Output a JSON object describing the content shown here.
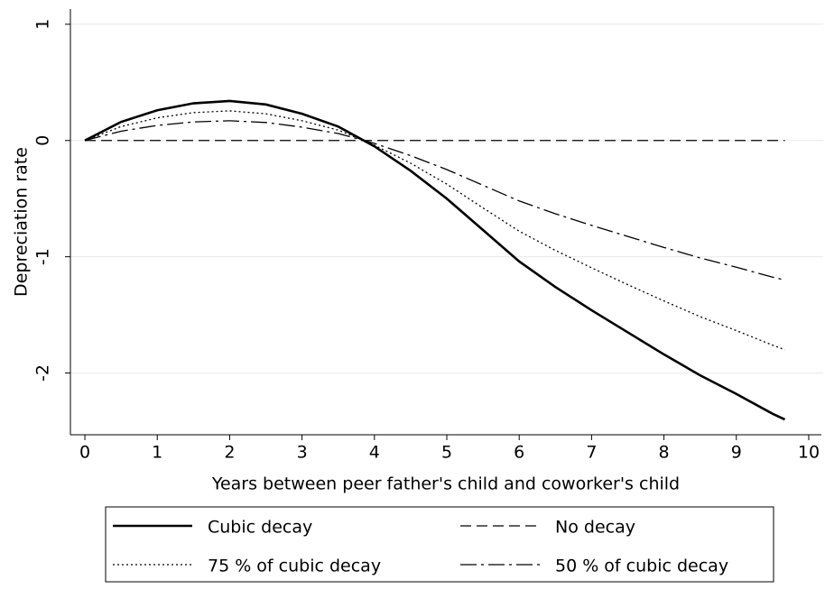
{
  "chart_data": {
    "type": "line",
    "xlabel": "Years between peer father's child and coworker's child",
    "ylabel": "Depreciation rate",
    "x": [
      0,
      0.5,
      1,
      1.5,
      2,
      2.5,
      3,
      3.5,
      4,
      4.5,
      5,
      5.5,
      6,
      6.5,
      7,
      7.5,
      8,
      8.5,
      9,
      9.5,
      9.67
    ],
    "series": [
      {
        "name": "Cubic decay",
        "color": "#000000",
        "style": "solid",
        "values": [
          0,
          0.16,
          0.26,
          0.32,
          0.34,
          0.31,
          0.23,
          0.12,
          -0.05,
          -0.26,
          -0.5,
          -0.77,
          -1.04,
          -1.26,
          -1.46,
          -1.65,
          -1.84,
          -2.02,
          -2.18,
          -2.35,
          -2.4
        ]
      },
      {
        "name": "No decay",
        "color": "#000000",
        "style": "dashed",
        "values": [
          0,
          0,
          0,
          0,
          0,
          0,
          0,
          0,
          0,
          0,
          0,
          0,
          0,
          0,
          0,
          0,
          0,
          0,
          0,
          0,
          0
        ]
      },
      {
        "name": "75 % of cubic decay",
        "color": "#000000",
        "style": "dotted",
        "values": [
          0,
          0.12,
          0.195,
          0.24,
          0.255,
          0.23,
          0.17,
          0.09,
          -0.04,
          -0.195,
          -0.375,
          -0.58,
          -0.78,
          -0.945,
          -1.095,
          -1.24,
          -1.38,
          -1.515,
          -1.635,
          -1.76,
          -1.8
        ]
      },
      {
        "name": "50 % of cubic decay",
        "color": "#000000",
        "style": "dashdot",
        "values": [
          0,
          0.08,
          0.13,
          0.16,
          0.17,
          0.155,
          0.115,
          0.06,
          -0.025,
          -0.13,
          -0.25,
          -0.385,
          -0.52,
          -0.63,
          -0.73,
          -0.825,
          -0.92,
          -1.01,
          -1.09,
          -1.175,
          -1.2
        ]
      }
    ],
    "xlim": [
      -0.2,
      10.2
    ],
    "xticks": [
      0,
      1,
      2,
      3,
      4,
      5,
      6,
      7,
      8,
      9,
      10
    ],
    "ylim": [
      -2.5,
      1.1
    ],
    "yticks": [
      -2,
      -1,
      0,
      1
    ],
    "grid": true,
    "legend": "bottom"
  }
}
